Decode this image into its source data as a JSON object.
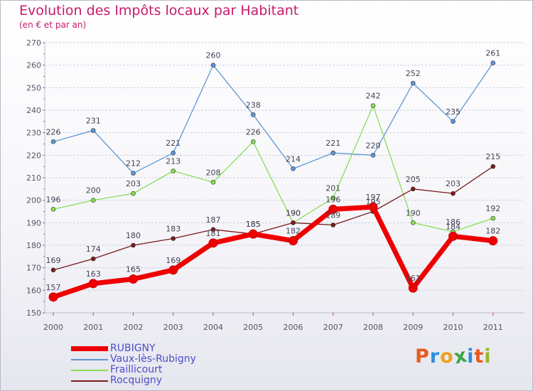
{
  "title": "Evolution des Impôts locaux par Habitant",
  "subtitle": "(en € et par an)",
  "brand": {
    "letters": [
      "P",
      "r",
      "o",
      "x",
      "i",
      "t",
      "i"
    ],
    "colors": [
      "#e85a1e",
      "#2e8fd8",
      "#f0a020",
      "#3aa64a",
      "#2e8fd8",
      "#e85a1e",
      "#9ab62a"
    ]
  },
  "chart_data": {
    "type": "line",
    "title": "Evolution des Impôts locaux par Habitant",
    "subtitle": "(en € et par an)",
    "xlabel": "",
    "ylabel": "",
    "x": [
      "2000",
      "2001",
      "2002",
      "2003",
      "2004",
      "2005",
      "2006",
      "2007",
      "2008",
      "2009",
      "2010",
      "2011"
    ],
    "ylim": [
      150,
      270
    ],
    "yticks": [
      150,
      160,
      170,
      180,
      190,
      200,
      210,
      220,
      230,
      240,
      250,
      260,
      270
    ],
    "grid": "horizontal",
    "legend_position": "bottom-left",
    "series": [
      {
        "name": "RUBIGNY",
        "color": "#ee0000",
        "values": [
          157,
          163,
          165,
          169,
          181,
          185,
          182,
          196,
          197,
          161,
          184,
          182
        ]
      },
      {
        "name": "Vaux-lès-Rubigny",
        "color": "#5f97d2",
        "values": [
          226,
          231,
          212,
          221,
          260,
          238,
          214,
          221,
          220,
          252,
          235,
          261
        ]
      },
      {
        "name": "Fraillicourt",
        "color": "#88dd55",
        "values": [
          196,
          200,
          203,
          213,
          208,
          226,
          190,
          201,
          242,
          190,
          186,
          192
        ]
      },
      {
        "name": "Rocquigny",
        "color": "#7a1c1c",
        "values": [
          169,
          174,
          180,
          183,
          187,
          185,
          190,
          189,
          195,
          205,
          203,
          215
        ]
      }
    ]
  }
}
